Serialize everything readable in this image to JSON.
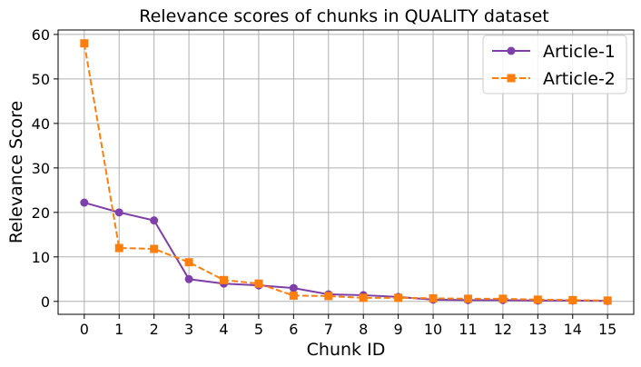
{
  "chart_data": {
    "type": "line",
    "title": "Relevance scores of chunks in QUALITY dataset",
    "xlabel": "Chunk ID",
    "ylabel": "Relevance Score",
    "x": [
      0,
      1,
      2,
      3,
      4,
      5,
      6,
      7,
      8,
      9,
      10,
      11,
      12,
      13,
      14,
      15
    ],
    "xlim": [
      -0.75,
      15.75
    ],
    "ylim": [
      -2.9,
      61
    ],
    "yticks": [
      0,
      10,
      20,
      30,
      40,
      50,
      60
    ],
    "grid": true,
    "legend_position": "top-right",
    "series": [
      {
        "name": "Article-1",
        "color": "#7f3fa8",
        "linestyle": "solid",
        "marker": "circle",
        "values": [
          22.2,
          20.0,
          18.2,
          5.0,
          4.0,
          3.6,
          3.0,
          1.6,
          1.4,
          1.0,
          0.4,
          0.3,
          0.3,
          0.2,
          0.2,
          0.1
        ]
      },
      {
        "name": "Article-2",
        "color": "#ff7f0e",
        "linestyle": "dashed",
        "marker": "square",
        "values": [
          58.0,
          12.0,
          11.8,
          8.8,
          4.8,
          4.0,
          1.3,
          1.2,
          0.8,
          0.8,
          0.7,
          0.6,
          0.6,
          0.4,
          0.3,
          0.2
        ]
      }
    ]
  }
}
